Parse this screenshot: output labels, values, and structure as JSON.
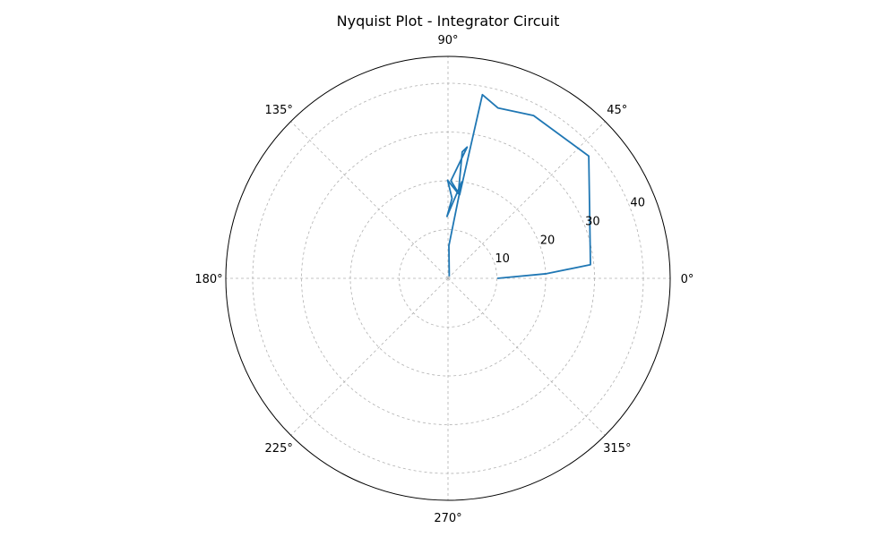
{
  "chart_data": {
    "type": "polar-line",
    "title": "Nyquist Plot - Integrator Circuit",
    "angular_ticks_deg": [
      0,
      45,
      90,
      135,
      180,
      225,
      270,
      315
    ],
    "angular_tick_labels": [
      "0°",
      "45°",
      "90°",
      "135°",
      "180°",
      "225°",
      "270°",
      "315°"
    ],
    "radial_ticks": [
      10,
      20,
      30,
      40
    ],
    "radial_tick_labels": [
      "10",
      "20",
      "30",
      "40"
    ],
    "rlim": [
      0,
      45.5
    ],
    "radial_label_angle_deg": 22.5,
    "grid": true,
    "series": [
      {
        "color": "#1f77b4",
        "theta_deg": [
          58.4,
          88.5,
          81.9,
          90.9,
          87.1,
          90.2,
          83.1,
          83.6,
          81.7,
          88.3,
          82.1,
          79.4,
          73.7,
          62.3,
          41.0,
          5.5,
          2.7,
          0
        ],
        "r": [
          0.5,
          6.7,
          20.0,
          12.7,
          16.4,
          20.1,
          17.5,
          26.1,
          27.2,
          20.0,
          17.3,
          38.3,
          36.4,
          37.7,
          38.2,
          29.3,
          20.2,
          10.1
        ]
      }
    ]
  }
}
